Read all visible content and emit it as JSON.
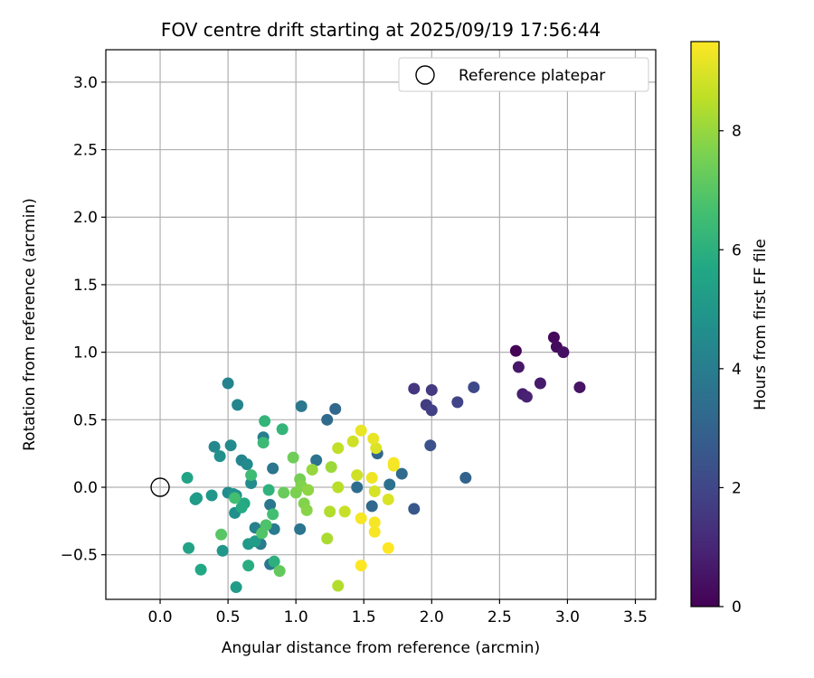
{
  "chart_data": {
    "type": "scatter",
    "title": "FOV centre drift starting at 2025/09/19 17:56:44",
    "xlabel": "Angular distance from reference (arcmin)",
    "ylabel": "Rotation from reference (arcmin)",
    "xlim": [
      -0.4,
      3.65
    ],
    "ylim": [
      -0.83,
      3.24
    ],
    "xticks": [
      0.0,
      0.5,
      1.0,
      1.5,
      2.0,
      2.5,
      3.0,
      3.5
    ],
    "xtick_labels": [
      "0.0",
      "0.5",
      "1.0",
      "1.5",
      "2.0",
      "2.5",
      "3.0",
      "3.5"
    ],
    "yticks": [
      -0.5,
      0.0,
      0.5,
      1.0,
      1.5,
      2.0,
      2.5,
      3.0
    ],
    "ytick_labels": [
      "−0.5",
      "0.0",
      "0.5",
      "1.0",
      "1.5",
      "2.0",
      "2.5",
      "3.0"
    ],
    "grid": true,
    "legend": {
      "placement": "top-right",
      "entries": [
        "Reference platepar"
      ]
    },
    "reference_point": {
      "x": 0.0,
      "y": 0.0
    },
    "colorbar": {
      "label": "Hours from first FF file",
      "range": [
        0,
        9.5
      ],
      "ticks": [
        0,
        2,
        4,
        6,
        8
      ],
      "tick_labels": [
        "0",
        "2",
        "4",
        "6",
        "8"
      ],
      "colormap": "viridis"
    },
    "points": [
      {
        "x": 2.62,
        "y": 1.01,
        "hours": 0.1
      },
      {
        "x": 2.9,
        "y": 1.11,
        "hours": 0.2
      },
      {
        "x": 2.92,
        "y": 1.04,
        "hours": 0.3
      },
      {
        "x": 2.97,
        "y": 1.0,
        "hours": 0.4
      },
      {
        "x": 3.09,
        "y": 0.74,
        "hours": 0.5
      },
      {
        "x": 2.64,
        "y": 0.89,
        "hours": 0.6
      },
      {
        "x": 2.8,
        "y": 0.77,
        "hours": 0.7
      },
      {
        "x": 2.67,
        "y": 0.69,
        "hours": 0.8
      },
      {
        "x": 2.7,
        "y": 0.67,
        "hours": 0.9
      },
      {
        "x": 1.87,
        "y": 0.73,
        "hours": 1.5
      },
      {
        "x": 2.0,
        "y": 0.72,
        "hours": 1.6
      },
      {
        "x": 1.96,
        "y": 0.61,
        "hours": 1.7
      },
      {
        "x": 2.0,
        "y": 0.57,
        "hours": 1.8
      },
      {
        "x": 2.19,
        "y": 0.63,
        "hours": 1.9
      },
      {
        "x": 2.31,
        "y": 0.74,
        "hours": 2.1
      },
      {
        "x": 1.99,
        "y": 0.31,
        "hours": 2.4
      },
      {
        "x": 1.87,
        "y": -0.16,
        "hours": 2.6
      },
      {
        "x": 2.25,
        "y": 0.07,
        "hours": 3.0
      },
      {
        "x": 1.29,
        "y": 0.58,
        "hours": 3.2
      },
      {
        "x": 1.23,
        "y": 0.5,
        "hours": 3.3
      },
      {
        "x": 1.6,
        "y": 0.25,
        "hours": 3.1
      },
      {
        "x": 1.78,
        "y": 0.1,
        "hours": 3.3
      },
      {
        "x": 1.45,
        "y": 0.0,
        "hours": 3.4
      },
      {
        "x": 1.69,
        "y": 0.02,
        "hours": 3.5
      },
      {
        "x": 1.56,
        "y": -0.14,
        "hours": 3.2
      },
      {
        "x": 1.15,
        "y": 0.2,
        "hours": 3.6
      },
      {
        "x": 1.04,
        "y": 0.6,
        "hours": 3.8
      },
      {
        "x": 0.83,
        "y": 0.14,
        "hours": 3.7
      },
      {
        "x": 0.84,
        "y": -0.31,
        "hours": 3.9
      },
      {
        "x": 1.03,
        "y": -0.31,
        "hours": 3.7
      },
      {
        "x": 0.81,
        "y": -0.13,
        "hours": 3.8
      },
      {
        "x": 0.74,
        "y": -0.42,
        "hours": 3.9
      },
      {
        "x": 0.81,
        "y": -0.57,
        "hours": 3.8
      },
      {
        "x": 0.7,
        "y": -0.3,
        "hours": 4.1
      },
      {
        "x": 0.76,
        "y": 0.37,
        "hours": 4.0
      },
      {
        "x": 0.5,
        "y": 0.77,
        "hours": 4.2
      },
      {
        "x": 0.57,
        "y": 0.61,
        "hours": 4.3
      },
      {
        "x": 0.4,
        "y": 0.3,
        "hours": 4.4
      },
      {
        "x": 0.52,
        "y": 0.31,
        "hours": 4.5
      },
      {
        "x": 0.6,
        "y": 0.2,
        "hours": 4.3
      },
      {
        "x": 0.64,
        "y": 0.17,
        "hours": 4.5
      },
      {
        "x": 0.67,
        "y": 0.03,
        "hours": 4.6
      },
      {
        "x": 0.44,
        "y": 0.23,
        "hours": 4.7
      },
      {
        "x": 0.5,
        "y": -0.04,
        "hours": 4.6
      },
      {
        "x": 0.54,
        "y": -0.05,
        "hours": 4.8
      },
      {
        "x": 0.56,
        "y": -0.06,
        "hours": 4.8
      },
      {
        "x": 0.55,
        "y": -0.19,
        "hours": 4.7
      },
      {
        "x": 0.38,
        "y": -0.06,
        "hours": 5.0
      },
      {
        "x": 0.27,
        "y": -0.08,
        "hours": 5.1
      },
      {
        "x": 0.26,
        "y": -0.09,
        "hours": 5.2
      },
      {
        "x": 0.46,
        "y": -0.47,
        "hours": 5.0
      },
      {
        "x": 0.65,
        "y": -0.42,
        "hours": 5.1
      },
      {
        "x": 0.7,
        "y": -0.4,
        "hours": 5.2
      },
      {
        "x": 0.56,
        "y": -0.74,
        "hours": 5.2
      },
      {
        "x": 0.2,
        "y": 0.07,
        "hours": 5.5
      },
      {
        "x": 0.21,
        "y": -0.45,
        "hours": 5.5
      },
      {
        "x": 0.3,
        "y": -0.61,
        "hours": 5.7
      },
      {
        "x": 0.62,
        "y": -0.12,
        "hours": 5.7
      },
      {
        "x": 0.6,
        "y": -0.15,
        "hours": 5.8
      },
      {
        "x": 0.65,
        "y": -0.58,
        "hours": 5.9
      },
      {
        "x": 0.84,
        "y": -0.55,
        "hours": 6.0
      },
      {
        "x": 0.8,
        "y": -0.02,
        "hours": 6.1
      },
      {
        "x": 0.77,
        "y": 0.49,
        "hours": 6.2
      },
      {
        "x": 0.9,
        "y": 0.43,
        "hours": 6.2
      },
      {
        "x": 0.76,
        "y": 0.33,
        "hours": 6.4
      },
      {
        "x": 0.67,
        "y": 0.09,
        "hours": 6.5
      },
      {
        "x": 0.55,
        "y": -0.08,
        "hours": 6.6
      },
      {
        "x": 0.83,
        "y": -0.2,
        "hours": 6.6
      },
      {
        "x": 0.78,
        "y": -0.28,
        "hours": 6.8
      },
      {
        "x": 0.75,
        "y": -0.34,
        "hours": 6.9
      },
      {
        "x": 0.45,
        "y": -0.35,
        "hours": 7.0
      },
      {
        "x": 0.88,
        "y": -0.62,
        "hours": 7.2
      },
      {
        "x": 0.91,
        "y": -0.04,
        "hours": 7.3
      },
      {
        "x": 0.98,
        "y": 0.22,
        "hours": 7.4
      },
      {
        "x": 1.03,
        "y": 0.06,
        "hours": 7.5
      },
      {
        "x": 1.0,
        "y": -0.04,
        "hours": 7.6
      },
      {
        "x": 1.04,
        "y": 0.01,
        "hours": 7.7
      },
      {
        "x": 1.06,
        "y": -0.12,
        "hours": 7.7
      },
      {
        "x": 1.08,
        "y": -0.17,
        "hours": 7.8
      },
      {
        "x": 1.09,
        "y": -0.02,
        "hours": 7.9
      },
      {
        "x": 1.12,
        "y": 0.13,
        "hours": 8.0
      },
      {
        "x": 1.26,
        "y": 0.15,
        "hours": 8.1
      },
      {
        "x": 1.23,
        "y": -0.38,
        "hours": 8.3
      },
      {
        "x": 1.31,
        "y": -0.73,
        "hours": 8.4
      },
      {
        "x": 1.25,
        "y": -0.18,
        "hours": 8.4
      },
      {
        "x": 1.31,
        "y": 0.0,
        "hours": 8.5
      },
      {
        "x": 1.31,
        "y": 0.29,
        "hours": 8.6
      },
      {
        "x": 1.36,
        "y": -0.18,
        "hours": 8.7
      },
      {
        "x": 1.42,
        "y": 0.34,
        "hours": 8.8
      },
      {
        "x": 1.45,
        "y": 0.09,
        "hours": 8.8
      },
      {
        "x": 1.58,
        "y": -0.03,
        "hours": 8.9
      },
      {
        "x": 1.59,
        "y": 0.29,
        "hours": 9.0
      },
      {
        "x": 1.68,
        "y": -0.09,
        "hours": 9.0
      },
      {
        "x": 1.48,
        "y": 0.42,
        "hours": 9.2
      },
      {
        "x": 1.57,
        "y": 0.36,
        "hours": 9.2
      },
      {
        "x": 1.56,
        "y": 0.07,
        "hours": 9.3
      },
      {
        "x": 1.72,
        "y": 0.16,
        "hours": 9.3
      },
      {
        "x": 1.72,
        "y": 0.18,
        "hours": 9.4
      },
      {
        "x": 1.48,
        "y": -0.23,
        "hours": 9.4
      },
      {
        "x": 1.58,
        "y": -0.26,
        "hours": 9.4
      },
      {
        "x": 1.58,
        "y": -0.33,
        "hours": 9.4
      },
      {
        "x": 1.68,
        "y": -0.45,
        "hours": 9.5
      },
      {
        "x": 1.48,
        "y": -0.58,
        "hours": 9.5
      }
    ]
  }
}
